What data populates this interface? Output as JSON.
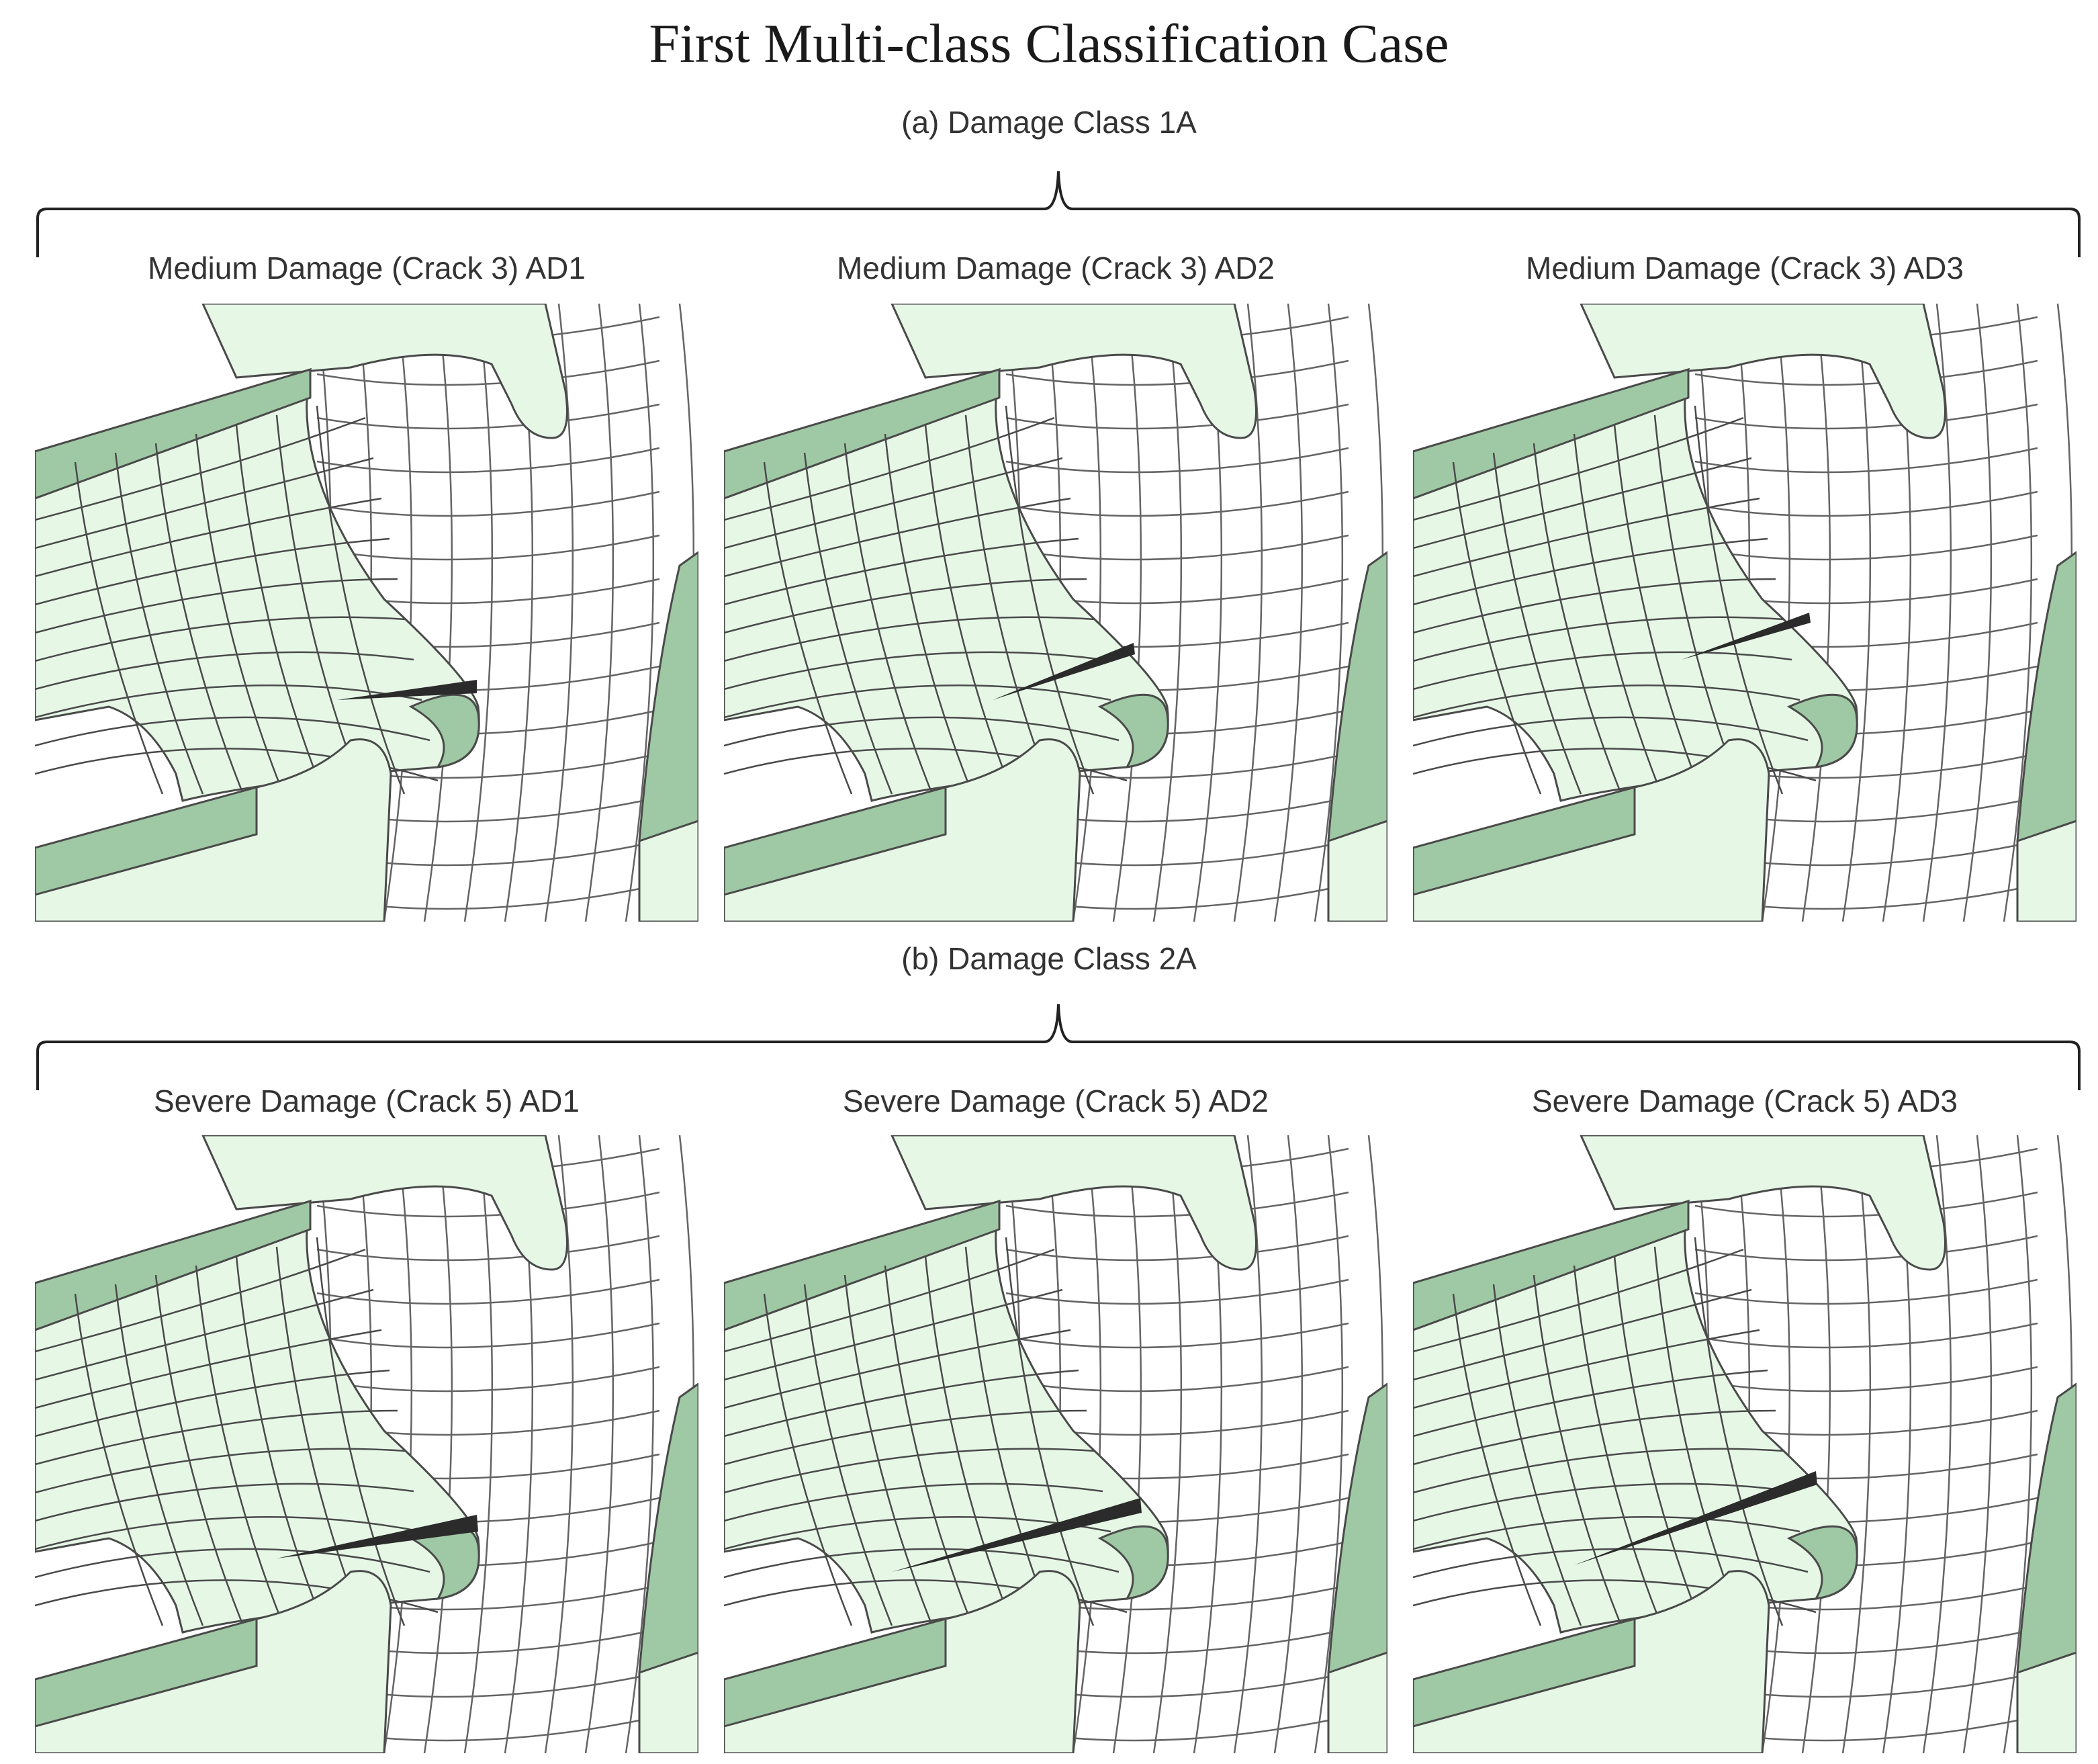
{
  "title": "First Multi-class Classification Case",
  "groups": [
    {
      "label": "(a) Damage Class 1A",
      "panels": [
        {
          "label": "Medium Damage (Crack 3) AD1",
          "crack_variant": "AD1"
        },
        {
          "label": "Medium Damage (Crack 3) AD2",
          "crack_variant": "AD2"
        },
        {
          "label": "Medium Damage (Crack 3) AD3",
          "crack_variant": "AD3"
        }
      ]
    },
    {
      "label": "(b) Damage Class 2A",
      "panels": [
        {
          "label": "Severe Damage (Crack 5) AD1",
          "crack_variant": "AD1"
        },
        {
          "label": "Severe Damage (Crack 5) AD2",
          "crack_variant": "AD2"
        },
        {
          "label": "Severe Damage (Crack 5) AD3",
          "crack_variant": "AD3"
        }
      ]
    }
  ],
  "colors": {
    "mesh_face": "#e6f7e6",
    "mesh_face_dark": "#9fc9a4",
    "mesh_line": "#4a4a4a",
    "crack": "#2b2b2b",
    "brace": "#222222"
  }
}
